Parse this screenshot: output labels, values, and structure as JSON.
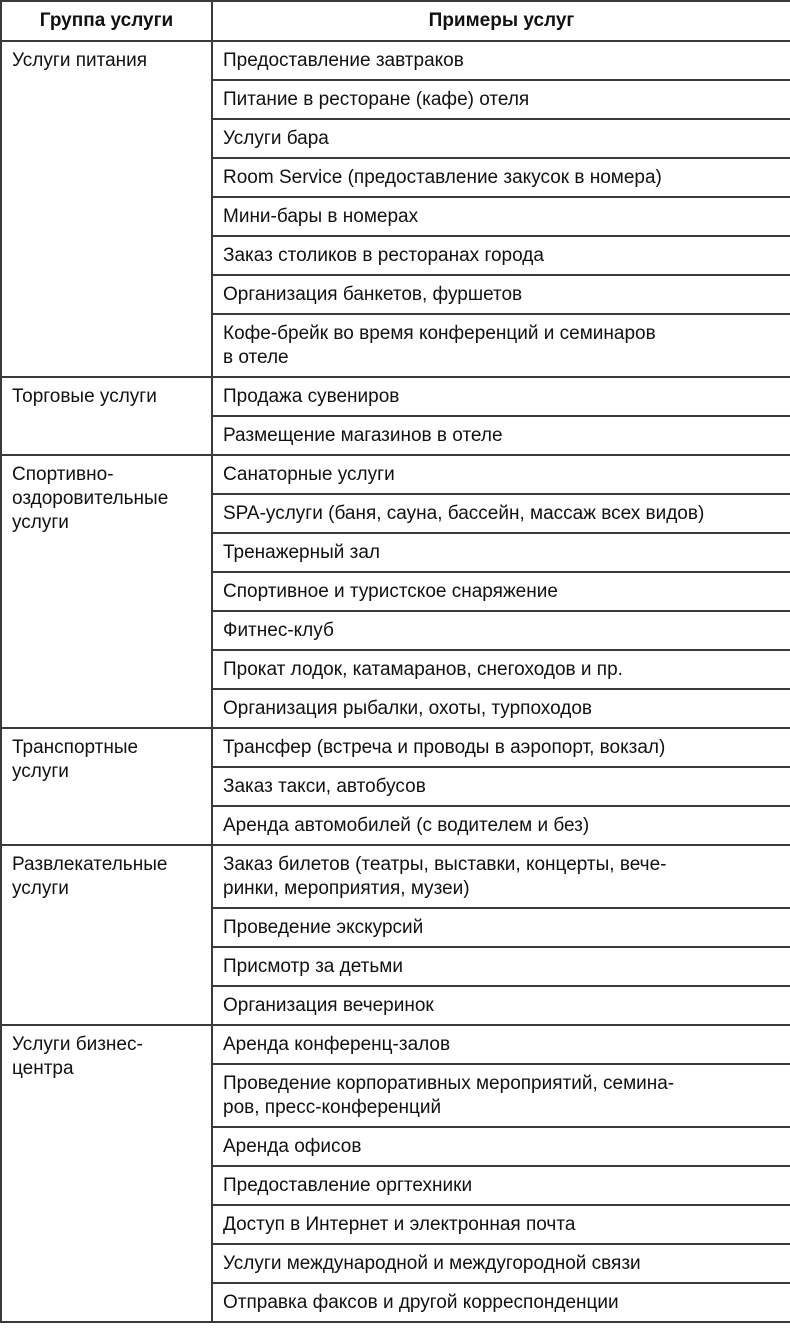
{
  "header": {
    "group": "Группа услуги",
    "examples": "Примеры услуг"
  },
  "groups": [
    {
      "name": "Услуги питания",
      "services": [
        "Предоставление завтраков",
        "Питание в ресторане (кафе) отеля",
        "Услуги бара",
        "Room Service (предоставление закусок в номера)",
        "Мини-бары в номерах",
        "Заказ столиков в ресторанах города",
        "Организация банкетов, фуршетов",
        "Кофе-брейк во время конференций и семинаров\nв отеле"
      ]
    },
    {
      "name": "Торговые услуги",
      "services": [
        "Продажа сувениров",
        "Размещение магазинов в отеле"
      ]
    },
    {
      "name": "Спортивно-\nоздоровительные\nуслуги",
      "services": [
        "Санаторные услуги",
        "SPA-услуги (баня, сауна, бассейн, массаж всех видов)",
        "Тренажерный зал",
        "Спортивное и туристское снаряжение",
        "Фитнес-клуб",
        "Прокат лодок, катамаранов, снегоходов и пр.",
        "Организация рыбалки, охоты, турпоходов"
      ]
    },
    {
      "name": "Транспортные\nуслуги",
      "services": [
        "Трансфер (встреча и проводы в аэропорт, вокзал)",
        "Заказ такси, автобусов",
        "Аренда автомобилей (с водителем и без)"
      ]
    },
    {
      "name": "Развлекательные\nуслуги",
      "services": [
        "Заказ билетов (театры, выставки, концерты, вече-\nринки, мероприятия, музеи)",
        "Проведение экскурсий",
        "Присмотр за детьми",
        "Организация вечеринок"
      ]
    },
    {
      "name": "Услуги бизнес-\nцентра",
      "services": [
        "Аренда конференц-залов",
        "Проведение корпоративных мероприятий, семина-\nров, пресс-конференций",
        "Аренда офисов",
        "Предоставление оргтехники",
        "Доступ в Интернет и электронная почта",
        "Услуги международной и междугородной связи",
        "Отправка факсов и другой корреспонденции"
      ]
    }
  ]
}
